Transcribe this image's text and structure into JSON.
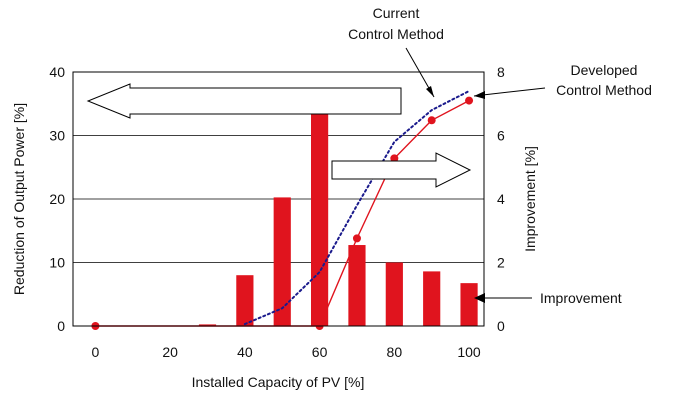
{
  "chart_data": {
    "type": "bar",
    "xlabel": "Installed Capacity of PV [%]",
    "ylabel_left": "Reduction of Output Power [%]",
    "ylabel_right": "Improvement [%]",
    "x_ticks": [
      "0",
      "20",
      "40",
      "60",
      "80",
      "100"
    ],
    "y_left_ticks": [
      "0",
      "10",
      "20",
      "30",
      "40"
    ],
    "y_right_ticks": [
      "0",
      "2",
      "4",
      "6",
      "8"
    ],
    "xlim": [
      -6,
      104
    ],
    "ylim_left": [
      0,
      40
    ],
    "ylim_right": [
      0,
      8
    ],
    "grid": "horizontal",
    "series": [
      {
        "name": "Improvement",
        "kind": "bar",
        "axis": "right",
        "color": "#e0141e",
        "x": [
          30,
          40,
          50,
          60,
          70,
          80,
          90,
          100
        ],
        "values": [
          0.05,
          1.6,
          4.05,
          6.95,
          2.55,
          2.0,
          1.72,
          1.35
        ]
      },
      {
        "name": "Developed Control Method",
        "kind": "line",
        "axis": "left",
        "color": "#e0141e",
        "marker": "circle",
        "x": [
          0,
          60,
          70,
          80,
          90,
          100
        ],
        "y": [
          0,
          0,
          13.8,
          26.4,
          32.4,
          35.5
        ]
      },
      {
        "name": "Current Control Method",
        "kind": "line",
        "axis": "left",
        "style": "dotted",
        "color": "#1a1a8c",
        "x": [
          40,
          50,
          60,
          70,
          80,
          90,
          100
        ],
        "y": [
          0.3,
          2.8,
          8.5,
          19,
          29,
          34,
          37
        ]
      }
    ],
    "annotations": [
      {
        "text": "Current",
        "line": 1
      },
      {
        "text": "Control Method",
        "line": 2
      },
      {
        "text": "Developed",
        "line": 1
      },
      {
        "text": "Control Method",
        "line": 2
      },
      {
        "text": "Improvement",
        "line": 1
      }
    ]
  }
}
